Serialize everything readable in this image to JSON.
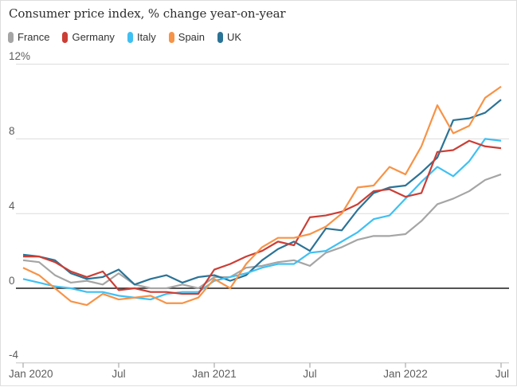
{
  "chart_data": {
    "type": "line",
    "title": "Consumer price index, % change year-on-year",
    "legend_position": "top-left",
    "grid": "horizontal",
    "x_axis": {
      "tick_labels": [
        "Jan 2020",
        "Jul",
        "Jan 2021",
        "Jul",
        "Jan 2022",
        "Jul"
      ],
      "tick_month_index": [
        0,
        6,
        12,
        18,
        24,
        30
      ]
    },
    "y_axis": {
      "min": -4,
      "max": 12,
      "unit": "%",
      "ticks": [
        {
          "value": 12,
          "label": "12%"
        },
        {
          "value": 8,
          "label": "8"
        },
        {
          "value": 4,
          "label": "4"
        },
        {
          "value": 0,
          "label": "0"
        },
        {
          "value": -4,
          "label": "-4"
        }
      ]
    },
    "categories": [
      "Jan 2020",
      "Feb 2020",
      "Mar 2020",
      "Apr 2020",
      "May 2020",
      "Jun 2020",
      "Jul 2020",
      "Aug 2020",
      "Sep 2020",
      "Oct 2020",
      "Nov 2020",
      "Dec 2020",
      "Jan 2021",
      "Feb 2021",
      "Mar 2021",
      "Apr 2021",
      "May 2021",
      "Jun 2021",
      "Jul 2021",
      "Aug 2021",
      "Sep 2021",
      "Oct 2021",
      "Nov 2021",
      "Dec 2021",
      "Jan 2022",
      "Feb 2022",
      "Mar 2022",
      "Apr 2022",
      "May 2022",
      "Jun 2022",
      "Jul 2022"
    ],
    "series": [
      {
        "name": "France",
        "color": "#a5a5a5",
        "values": [
          1.5,
          1.4,
          0.7,
          0.3,
          0.4,
          0.2,
          0.8,
          0.2,
          0.0,
          0.0,
          0.2,
          0.0,
          0.6,
          0.6,
          1.1,
          1.2,
          1.4,
          1.5,
          1.2,
          1.9,
          2.2,
          2.6,
          2.8,
          2.8,
          2.9,
          3.6,
          4.5,
          4.8,
          5.2,
          5.8,
          6.1
        ]
      },
      {
        "name": "Germany",
        "color": "#cb3e35",
        "values": [
          1.7,
          1.7,
          1.4,
          0.9,
          0.6,
          0.9,
          -0.1,
          0.0,
          -0.2,
          -0.2,
          -0.3,
          -0.3,
          1.0,
          1.3,
          1.7,
          2.0,
          2.5,
          2.3,
          3.8,
          3.9,
          4.1,
          4.5,
          5.2,
          5.3,
          4.9,
          5.1,
          7.3,
          7.4,
          7.9,
          7.6,
          7.5
        ]
      },
      {
        "name": "Italy",
        "color": "#3fc0f3",
        "values": [
          0.5,
          0.3,
          0.1,
          0.0,
          -0.2,
          -0.2,
          -0.4,
          -0.5,
          -0.6,
          -0.3,
          -0.2,
          -0.2,
          0.4,
          0.6,
          0.8,
          1.1,
          1.3,
          1.3,
          1.9,
          2.0,
          2.5,
          3.0,
          3.7,
          3.9,
          4.8,
          5.7,
          6.5,
          6.0,
          6.8,
          8.0,
          7.9
        ]
      },
      {
        "name": "Spain",
        "color": "#f79347",
        "values": [
          1.1,
          0.7,
          0.0,
          -0.7,
          -0.9,
          -0.3,
          -0.6,
          -0.5,
          -0.4,
          -0.8,
          -0.8,
          -0.5,
          0.5,
          0.0,
          1.3,
          2.2,
          2.7,
          2.7,
          2.9,
          3.3,
          4.0,
          5.4,
          5.5,
          6.5,
          6.1,
          7.6,
          9.8,
          8.3,
          8.7,
          10.2,
          10.8
        ]
      },
      {
        "name": "UK",
        "color": "#2b7396",
        "values": [
          1.8,
          1.7,
          1.5,
          0.8,
          0.5,
          0.6,
          1.0,
          0.2,
          0.5,
          0.7,
          0.3,
          0.6,
          0.7,
          0.4,
          0.7,
          1.5,
          2.1,
          2.5,
          2.0,
          3.2,
          3.1,
          4.2,
          5.1,
          5.4,
          5.5,
          6.2,
          7.0,
          9.0,
          9.1,
          9.4,
          10.1
        ]
      }
    ],
    "draw_order": [
      "France",
      "UK",
      "Italy",
      "Germany",
      "Spain"
    ],
    "style": {
      "grid_color": "#dcdcdc",
      "bottom_axis_color": "#c4c4c4",
      "zero_line_color": "#1a1a1a",
      "tick_color": "#999999",
      "axis_label_color": "#5d5d5d",
      "title_color": "#2e2e2e"
    }
  }
}
